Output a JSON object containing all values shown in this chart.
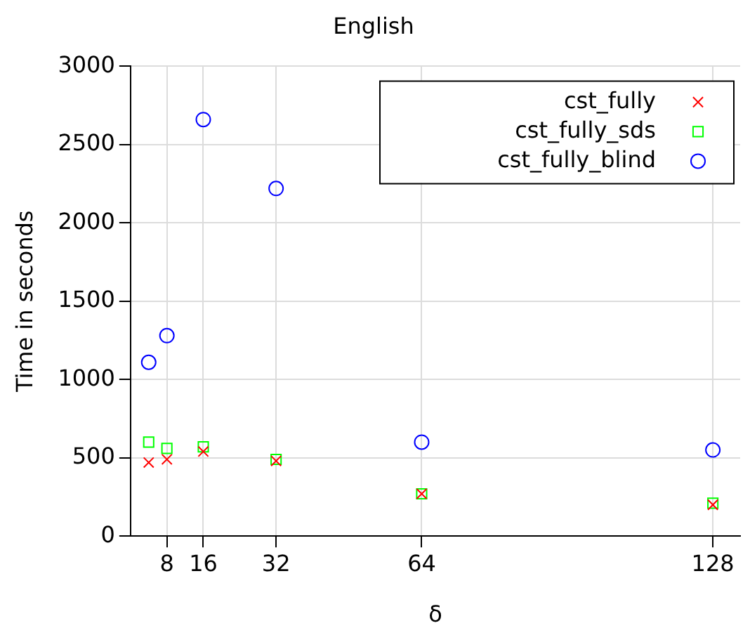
{
  "chart_data": {
    "type": "scatter",
    "title": "English",
    "xlabel": "δ",
    "ylabel": "Time in seconds",
    "xlim": [
      0,
      134
    ],
    "xticks": [
      8,
      16,
      32,
      64,
      128
    ],
    "ylim": [
      0,
      3000
    ],
    "yticks": [
      0,
      500,
      1000,
      1500,
      2000,
      2500,
      3000
    ],
    "grid": true,
    "legend": "top right",
    "series": [
      {
        "name": "cst_fully",
        "color": "#ff0000",
        "marker": "cross",
        "x": [
          4,
          8,
          16,
          32,
          64,
          128
        ],
        "values": [
          470,
          490,
          540,
          480,
          270,
          200
        ]
      },
      {
        "name": "cst_fully_sds",
        "color": "#00ff00",
        "marker": "square",
        "x": [
          4,
          8,
          16,
          32,
          64,
          128
        ],
        "values": [
          600,
          560,
          570,
          490,
          270,
          210
        ]
      },
      {
        "name": "cst_fully_blind",
        "color": "#0000ff",
        "marker": "circle",
        "x": [
          4,
          8,
          16,
          32,
          64,
          128
        ],
        "values": [
          1110,
          1280,
          2660,
          2220,
          600,
          550
        ]
      }
    ]
  }
}
